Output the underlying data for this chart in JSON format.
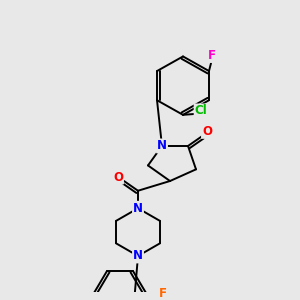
{
  "background_color": "#e8e8e8",
  "fig_size": [
    3.0,
    3.0
  ],
  "dpi": 100,
  "atom_colors": {
    "N": "#0000ff",
    "O": "#ff0000",
    "F_top": "#ff00cc",
    "F_bot": "#ff6600",
    "Cl": "#00bb00",
    "C": "#000000"
  },
  "bond_color": "#000000",
  "bond_width": 1.4
}
